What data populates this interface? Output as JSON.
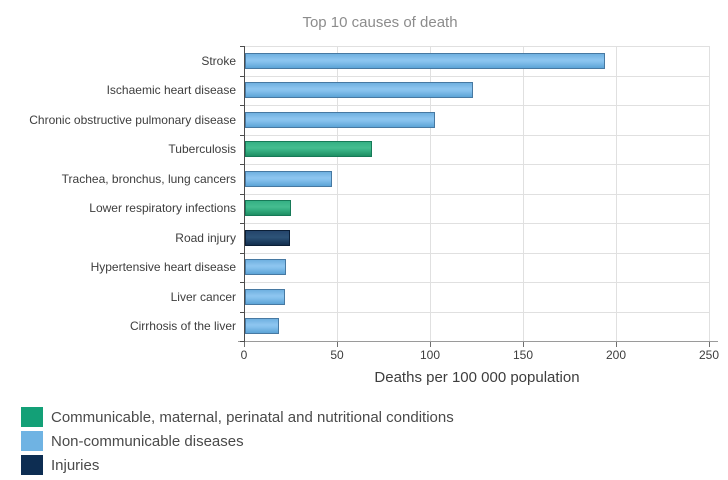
{
  "chart_data": {
    "type": "bar",
    "orientation": "horizontal",
    "title": "Top 10 causes of death",
    "xlabel": "Deaths per 100 000 population",
    "xlim": [
      0,
      250
    ],
    "xticks": [
      0,
      50,
      100,
      150,
      200,
      250
    ],
    "grid": true,
    "legend_position": "bottom-left",
    "categories": [
      "Stroke",
      "Ischaemic heart disease",
      "Chronic obstructive pulmonary disease",
      "Tuberculosis",
      "Trachea, bronchus, lung cancers",
      "Lower respiratory infections",
      "Road injury",
      "Hypertensive heart disease",
      "Liver cancer",
      "Cirrhosis of the liver"
    ],
    "values": [
      193.5,
      122.5,
      102,
      68,
      46.5,
      24.6,
      24.4,
      21.8,
      21.6,
      18.3
    ],
    "bar_groups": [
      "ncd",
      "ncd",
      "ncd",
      "cmpn",
      "ncd",
      "cmpn",
      "inj",
      "ncd",
      "ncd",
      "ncd"
    ],
    "groups": {
      "cmpn": {
        "label": "Communicable, maternal, perinatal and nutritional conditions",
        "color": "#13a077"
      },
      "ncd": {
        "label": "Non-communicable diseases",
        "color": "#6fb3e3"
      },
      "inj": {
        "label": "Injuries",
        "color": "#0d2d52"
      }
    }
  },
  "legend": {
    "items": [
      {
        "label": "Communicable, maternal, perinatal and nutritional conditions",
        "color": "#13a077",
        "group": "cmpn"
      },
      {
        "label": "Non-communicable diseases",
        "color": "#6fb3e3",
        "group": "ncd"
      },
      {
        "label": "Injuries",
        "color": "#0d2d52",
        "group": "inj"
      }
    ]
  }
}
